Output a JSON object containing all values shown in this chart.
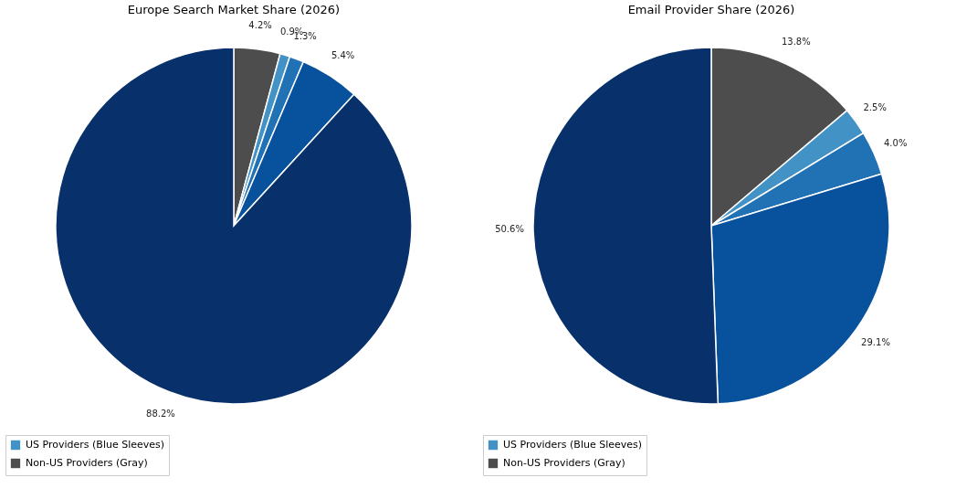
{
  "chart_data": [
    {
      "type": "pie",
      "title": "Europe Search Market Share (2026)",
      "categories": [
        "Non-US Providers (Gray)",
        "US Providers (Blue Sleeves)",
        null,
        null,
        null
      ],
      "values": [
        4.2,
        0.9,
        1.3,
        5.4,
        88.2
      ],
      "colors": [
        "#4d4d4d",
        "#4292c6",
        "#2171b5",
        "#08519c",
        "#08306b"
      ],
      "value_labels": [
        "4.2%",
        "0.9%",
        "1.3%",
        "5.4%",
        "88.2%"
      ],
      "legend": "bottom left"
    },
    {
      "type": "pie",
      "title": "Email Provider Share (2026)",
      "categories": [
        "Non-US Providers (Gray)",
        "US Providers (Blue Sleeves)",
        null,
        null,
        null
      ],
      "values": [
        13.8,
        2.5,
        4.0,
        29.1,
        50.6
      ],
      "colors": [
        "#4d4d4d",
        "#4292c6",
        "#2171b5",
        "#08519c",
        "#08306b"
      ],
      "value_labels": [
        "13.8%",
        "2.5%",
        "4.0%",
        "29.1%",
        "50.6%"
      ],
      "legend": "bottom left"
    }
  ]
}
